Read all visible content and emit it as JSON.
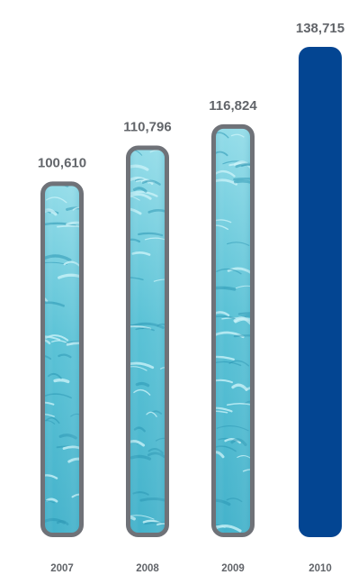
{
  "chart_data": {
    "type": "bar",
    "categories": [
      "2007",
      "2008",
      "2009",
      "2010"
    ],
    "values": [
      100610,
      110796,
      116824,
      138715
    ],
    "value_labels": [
      "100,610",
      "110,796",
      "116,824",
      "138,715"
    ],
    "title": "",
    "xlabel": "",
    "ylabel": "",
    "ylim": [
      0,
      140000
    ],
    "grid": false,
    "legend": "none",
    "colors": {
      "highlight_bar": "#034592",
      "water_bar_border": "#6f7278",
      "water_base": "#5cc4d6",
      "water_dark": "#1e8fae",
      "water_light": "#c6f1f7",
      "label_text": "#62656a"
    },
    "highlight_index": 3
  }
}
